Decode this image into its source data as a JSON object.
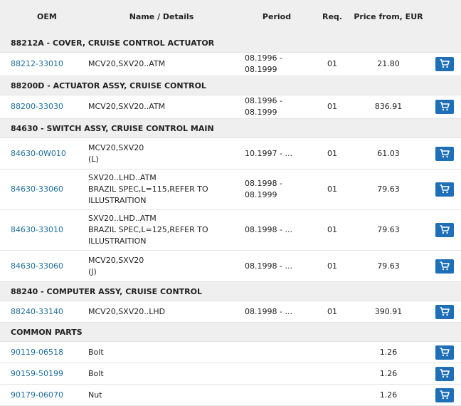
{
  "headers": {
    "oem": "OEM",
    "name": "Name / Details",
    "period": "Period",
    "req": "Req.",
    "price": "Price from, EUR"
  },
  "groups": [
    {
      "title": "88212A - COVER, CRUISE CONTROL ACTUATOR",
      "rows": [
        {
          "oem": "88212-33010",
          "lines": [
            "MCV20,SXV20..ATM"
          ],
          "period": "08.1996 - 08.1999",
          "req": "01",
          "price": "21.80"
        }
      ]
    },
    {
      "title": "88200D - ACTUATOR ASSY, CRUISE CONTROL",
      "rows": [
        {
          "oem": "88200-33030",
          "lines": [
            "MCV20,SXV20..ATM"
          ],
          "period": "08.1996 - 08.1999",
          "req": "01",
          "price": "836.91"
        }
      ]
    },
    {
      "title": "84630 - SWITCH ASSY, CRUISE CONTROL MAIN",
      "rows": [
        {
          "oem": "84630-0W010",
          "lines": [
            "MCV20,SXV20",
            "(L)"
          ],
          "period": "10.1997 - ...",
          "req": "01",
          "price": "61.03"
        },
        {
          "oem": "84630-33060",
          "lines": [
            "SXV20..LHD..ATM",
            "BRAZIL SPEC,L=115,REFER TO",
            "ILLUSTRAITION"
          ],
          "period": "08.1998 - 08.1999",
          "req": "01",
          "price": "79.63"
        },
        {
          "oem": "84630-33010",
          "lines": [
            "SXV20..LHD..ATM",
            "BRAZIL SPEC,L=125,REFER TO",
            "ILLUSTRAITION"
          ],
          "period": "08.1998 - ...",
          "req": "01",
          "price": "79.63"
        },
        {
          "oem": "84630-33060",
          "lines": [
            "MCV20,SXV20",
            "(J)"
          ],
          "period": "08.1998 - ...",
          "req": "01",
          "price": "79.63"
        }
      ]
    },
    {
      "title": "88240 - COMPUTER ASSY, CRUISE CONTROL",
      "rows": [
        {
          "oem": "88240-33140",
          "lines": [
            "MCV20,SXV20..LHD"
          ],
          "period": "08.1998 - ...",
          "req": "01",
          "price": "390.91"
        }
      ]
    },
    {
      "title": "COMMON PARTS",
      "rows": [
        {
          "oem": "90119-06518",
          "lines": [
            "Bolt"
          ],
          "period": "",
          "req": "",
          "price": "1.26"
        },
        {
          "oem": "90159-50199",
          "lines": [
            "Bolt"
          ],
          "period": "",
          "req": "",
          "price": "1.26"
        },
        {
          "oem": "90179-06070",
          "lines": [
            "Nut"
          ],
          "period": "",
          "req": "",
          "price": "1.26"
        }
      ]
    }
  ],
  "colors": {
    "link": "#1f6f9e",
    "cart_button": "#1f6fb8",
    "group_bg": "#efefef"
  },
  "icons": {
    "cart": "cart-icon"
  }
}
